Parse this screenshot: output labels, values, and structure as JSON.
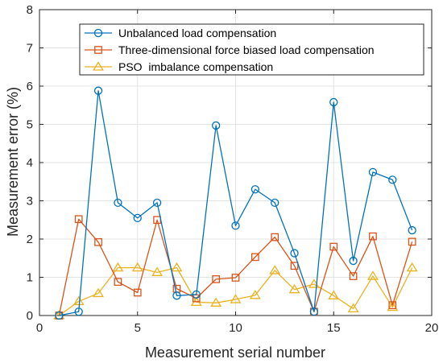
{
  "chart_data": {
    "type": "line",
    "title": "",
    "xlabel": "Measurement serial number",
    "ylabel": "Measurement error (%)",
    "xlim": [
      0,
      20
    ],
    "ylim": [
      0,
      8
    ],
    "xticks": [
      0,
      5,
      10,
      15,
      20
    ],
    "yticks": [
      0,
      1,
      2,
      3,
      4,
      5,
      6,
      7,
      8
    ],
    "grid": true,
    "legend_position": "top-right",
    "x": [
      1,
      2,
      3,
      4,
      5,
      6,
      7,
      8,
      9,
      10,
      11,
      12,
      13,
      14,
      15,
      16,
      17,
      18,
      19
    ],
    "series": [
      {
        "name": "Unbalanced load compensation",
        "marker": "circle",
        "color": "#0072BD",
        "values": [
          0.0,
          0.1,
          5.88,
          2.95,
          2.55,
          2.95,
          0.52,
          0.55,
          4.97,
          2.35,
          3.3,
          2.95,
          1.63,
          0.1,
          5.58,
          1.43,
          3.75,
          3.55,
          2.23
        ]
      },
      {
        "name": "Three-dimensional force biased load compensation",
        "marker": "square",
        "color": "#D95319",
        "values": [
          0.0,
          2.52,
          1.92,
          0.88,
          0.6,
          2.5,
          0.7,
          0.45,
          0.95,
          0.99,
          1.53,
          2.05,
          1.3,
          0.1,
          1.8,
          1.03,
          2.07,
          0.27,
          1.93
        ]
      },
      {
        "name": "PSO  imbalance compensation",
        "marker": "triangle",
        "color": "#EDB120",
        "values": [
          0.0,
          0.37,
          0.58,
          1.25,
          1.25,
          1.13,
          1.25,
          0.35,
          0.33,
          0.42,
          0.53,
          1.18,
          0.68,
          0.82,
          0.52,
          0.18,
          1.03,
          0.22,
          1.25
        ]
      }
    ]
  }
}
